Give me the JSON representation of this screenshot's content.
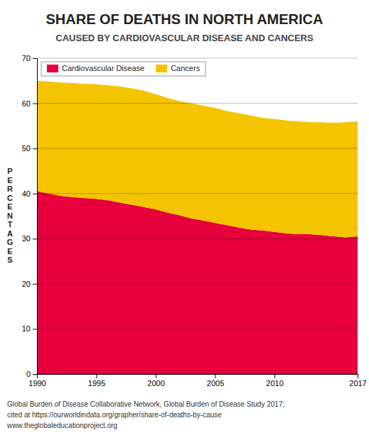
{
  "chart_data": {
    "type": "area",
    "stacked": true,
    "title": "SHARE OF DEATHS IN NORTH AMERICA",
    "subtitle": "CAUSED BY CARDIOVASCULAR DISEASE AND CANCERS",
    "ylabel": "P\nE\nR\nC\nE\nN\nT\nA\nG\nE\nS",
    "x": [
      1990,
      1991,
      1992,
      1993,
      1994,
      1995,
      1996,
      1997,
      1998,
      1999,
      2000,
      2001,
      2002,
      2003,
      2004,
      2005,
      2006,
      2007,
      2008,
      2009,
      2010,
      2011,
      2012,
      2013,
      2014,
      2015,
      2016,
      2017
    ],
    "series": [
      {
        "name": "Cardiovascular Disease",
        "color": "#E8003C",
        "values": [
          40.5,
          40.0,
          39.5,
          39.2,
          39.0,
          38.8,
          38.5,
          38.0,
          37.5,
          37.0,
          36.5,
          35.8,
          35.2,
          34.5,
          34.0,
          33.5,
          33.0,
          32.5,
          32.0,
          31.8,
          31.5,
          31.2,
          31.0,
          31.0,
          30.8,
          30.5,
          30.3,
          30.5
        ]
      },
      {
        "name": "Cancers",
        "color": "#F5C400",
        "values": [
          24.5,
          24.8,
          25.1,
          25.3,
          25.3,
          25.4,
          25.5,
          25.7,
          25.8,
          25.8,
          25.5,
          25.4,
          25.3,
          25.5,
          25.5,
          25.5,
          25.3,
          25.3,
          25.3,
          25.0,
          25.0,
          25.0,
          25.0,
          24.8,
          25.0,
          25.2,
          25.5,
          25.5
        ]
      }
    ],
    "xlim": [
      1990,
      2017
    ],
    "xticks": [
      1990,
      1995,
      2000,
      2005,
      2010,
      2017
    ],
    "ylim": [
      0,
      70
    ],
    "yticks": [
      0,
      10,
      20,
      30,
      40,
      50,
      60,
      70
    ],
    "grid": true,
    "legend": "top-left",
    "annotations": [
      "Global Burden of Disease Collaborative Network, Global Burden of Disease Study 2017;",
      "cited at https://ourworldindata.org/grapher/share-of-deaths-by-cause",
      "www.theglobaleducationproject.org"
    ]
  }
}
